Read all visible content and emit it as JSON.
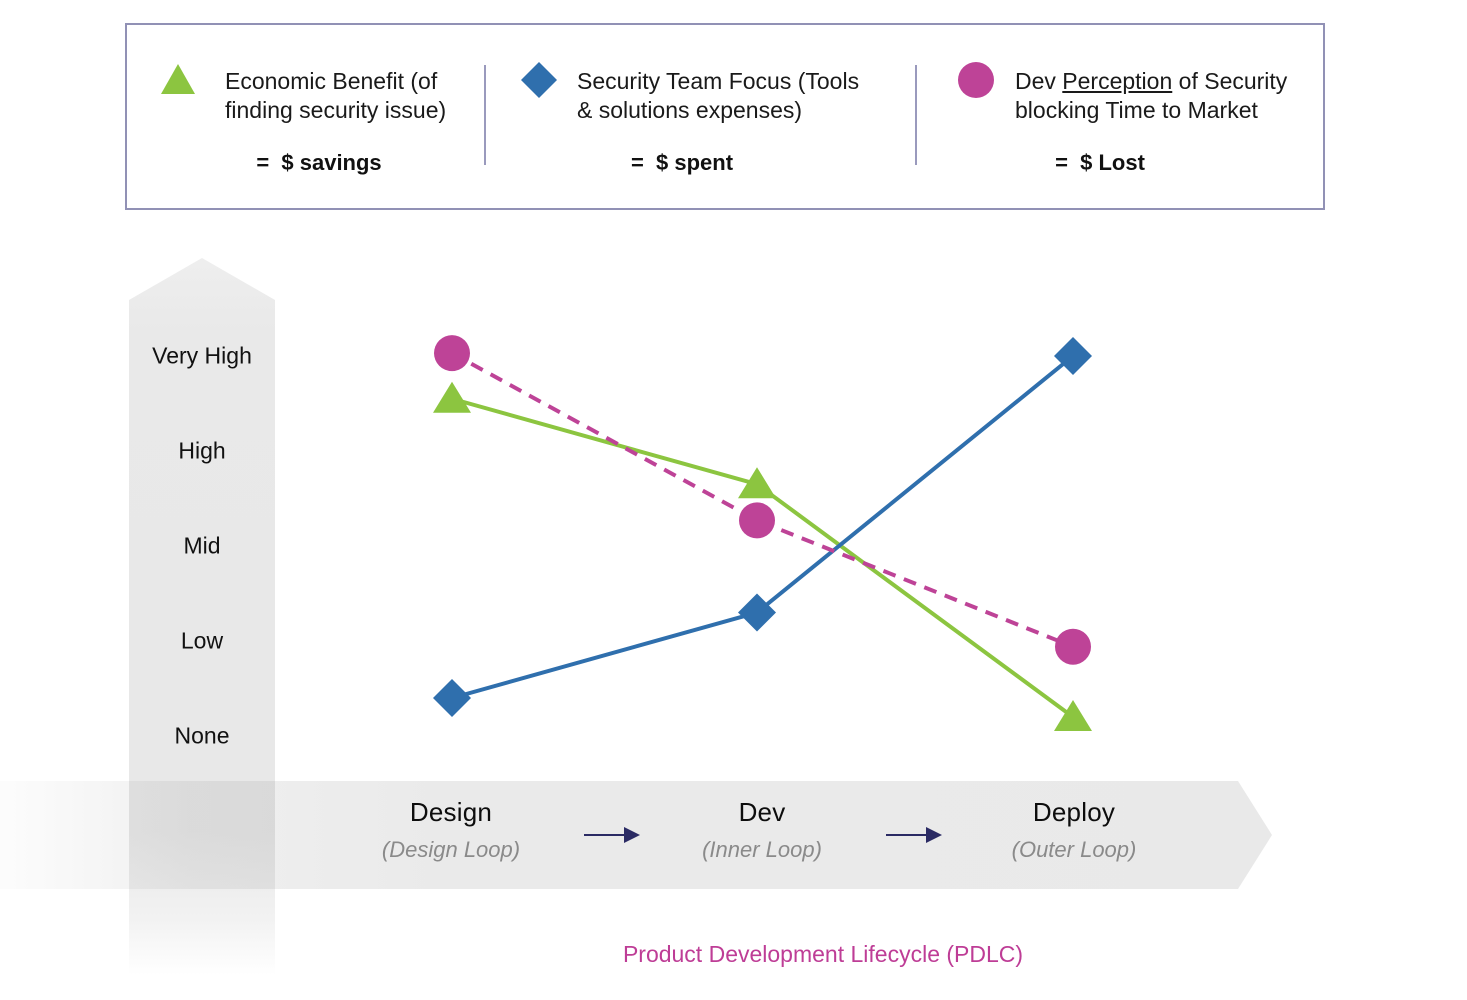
{
  "colors": {
    "green": "#8CC540",
    "blue": "#2F6FAD",
    "pink": "#BE4397",
    "navy_arrow": "#2B2B64",
    "title_pink": "#BE3D96",
    "band_gray": "#E8E8E8",
    "legend_border": "#9191B5"
  },
  "legend": {
    "items": [
      {
        "marker": "triangle",
        "color": "#8CC540",
        "line1": "Economic Benefit (of",
        "line2": "finding security issue)",
        "value": "=  $ savings"
      },
      {
        "marker": "diamond",
        "color": "#2F6FAD",
        "line1": "Security Team Focus (Tools",
        "line2": "& solutions expenses)",
        "value": "=  $ spent"
      },
      {
        "marker": "circle",
        "color": "#BE4397",
        "line1_pre": "Dev ",
        "line1_underline": "Perception",
        "line1_post": " of Security",
        "line2": "blocking Time to Market",
        "value": "=  $ Lost"
      }
    ]
  },
  "y_axis": {
    "labels": [
      "Very High",
      "High",
      "Mid",
      "Low",
      "None"
    ]
  },
  "x_axis": {
    "stages": [
      {
        "name": "Design",
        "loop": "(Design Loop)"
      },
      {
        "name": "Dev",
        "loop": "(Inner Loop)"
      },
      {
        "name": "Deploy",
        "loop": "(Outer Loop)"
      }
    ]
  },
  "footer_title": "Product Development Lifecycle (PDLC)",
  "chart_data": {
    "type": "line",
    "categories": [
      "Design",
      "Dev",
      "Deploy"
    ],
    "y_scale_labels": [
      "None",
      "Low",
      "Mid",
      "High",
      "Very High"
    ],
    "y_scale_note": "qualitative scale, 0 = None ... 4 = Very High",
    "grid": false,
    "legend_position": "top",
    "series": [
      {
        "name": "Economic Benefit (of finding security issue)",
        "equals": "$ savings",
        "marker": "triangle",
        "line_style": "solid",
        "color": "#8CC540",
        "levels": [
          3.55,
          2.65,
          0.2
        ],
        "approx": [
          "between High and Very High",
          "between Mid and High",
          "just above None"
        ]
      },
      {
        "name": "Security Team Focus (Tools & solutions expenses)",
        "equals": "$ spent",
        "marker": "diamond",
        "line_style": "solid",
        "color": "#2F6FAD",
        "levels": [
          0.4,
          1.3,
          4.0
        ],
        "approx": [
          "between None and Low",
          "just above Low",
          "Very High"
        ]
      },
      {
        "name": "Dev Perception of Security blocking Time to Market",
        "equals": "$ Lost",
        "marker": "circle",
        "line_style": "dashed",
        "color": "#BE4397",
        "levels": [
          4.03,
          2.27,
          0.94
        ],
        "approx": [
          "Very High",
          "slightly above Mid",
          "Low"
        ]
      }
    ]
  }
}
